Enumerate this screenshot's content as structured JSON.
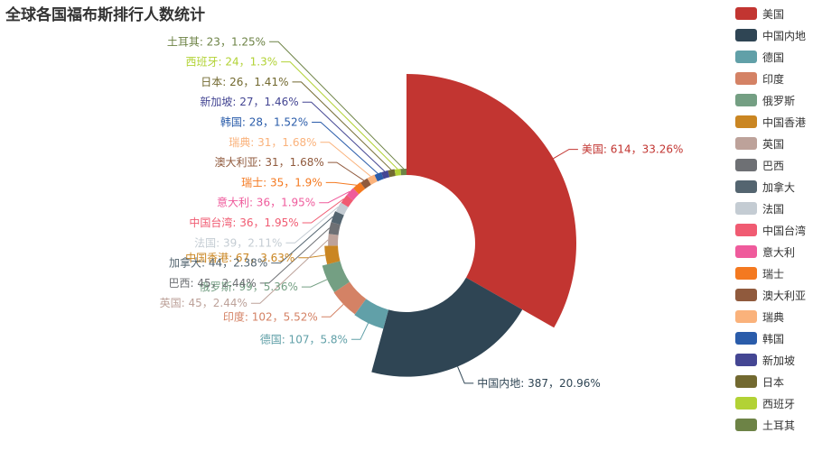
{
  "chart_data": {
    "type": "pie",
    "variant": "nightingale-rose-donut",
    "title": "全球各国福布斯排行人数统计",
    "legend_position": "right",
    "series": [
      {
        "name": "美国",
        "value": 614,
        "percent": "33.26%",
        "color": "#c23531"
      },
      {
        "name": "中国内地",
        "value": 387,
        "percent": "20.96%",
        "color": "#2f4554"
      },
      {
        "name": "德国",
        "value": 107,
        "percent": "5.8%",
        "color": "#61a0a8"
      },
      {
        "name": "印度",
        "value": 102,
        "percent": "5.52%",
        "color": "#d48265"
      },
      {
        "name": "俄罗斯",
        "value": 99,
        "percent": "5.36%",
        "color": "#749f83"
      },
      {
        "name": "中国香港",
        "value": 67,
        "percent": "3.63%",
        "color": "#ca8622"
      },
      {
        "name": "英国",
        "value": 45,
        "percent": "2.44%",
        "color": "#bda29a"
      },
      {
        "name": "巴西",
        "value": 45,
        "percent": "2.44%",
        "color": "#6e7074"
      },
      {
        "name": "加拿大",
        "value": 44,
        "percent": "2.38%",
        "color": "#546570"
      },
      {
        "name": "法国",
        "value": 39,
        "percent": "2.11%",
        "color": "#c4ccd3"
      },
      {
        "name": "中国台湾",
        "value": 36,
        "percent": "1.95%",
        "color": "#f05b72"
      },
      {
        "name": "意大利",
        "value": 36,
        "percent": "1.95%",
        "color": "#ef5b9c"
      },
      {
        "name": "瑞士",
        "value": 35,
        "percent": "1.9%",
        "color": "#f47920"
      },
      {
        "name": "澳大利亚",
        "value": 31,
        "percent": "1.68%",
        "color": "#905a3d"
      },
      {
        "name": "瑞典",
        "value": 31,
        "percent": "1.68%",
        "color": "#fab27b"
      },
      {
        "name": "韩国",
        "value": 28,
        "percent": "1.52%",
        "color": "#2a5caa"
      },
      {
        "name": "新加坡",
        "value": 27,
        "percent": "1.46%",
        "color": "#444693"
      },
      {
        "name": "日本",
        "value": 26,
        "percent": "1.41%",
        "color": "#726930"
      },
      {
        "name": "西班牙",
        "value": 24,
        "percent": "1.3%",
        "color": "#b2d235"
      },
      {
        "name": "土耳其",
        "value": 23,
        "percent": "1.25%",
        "color": "#6d8346"
      }
    ]
  }
}
